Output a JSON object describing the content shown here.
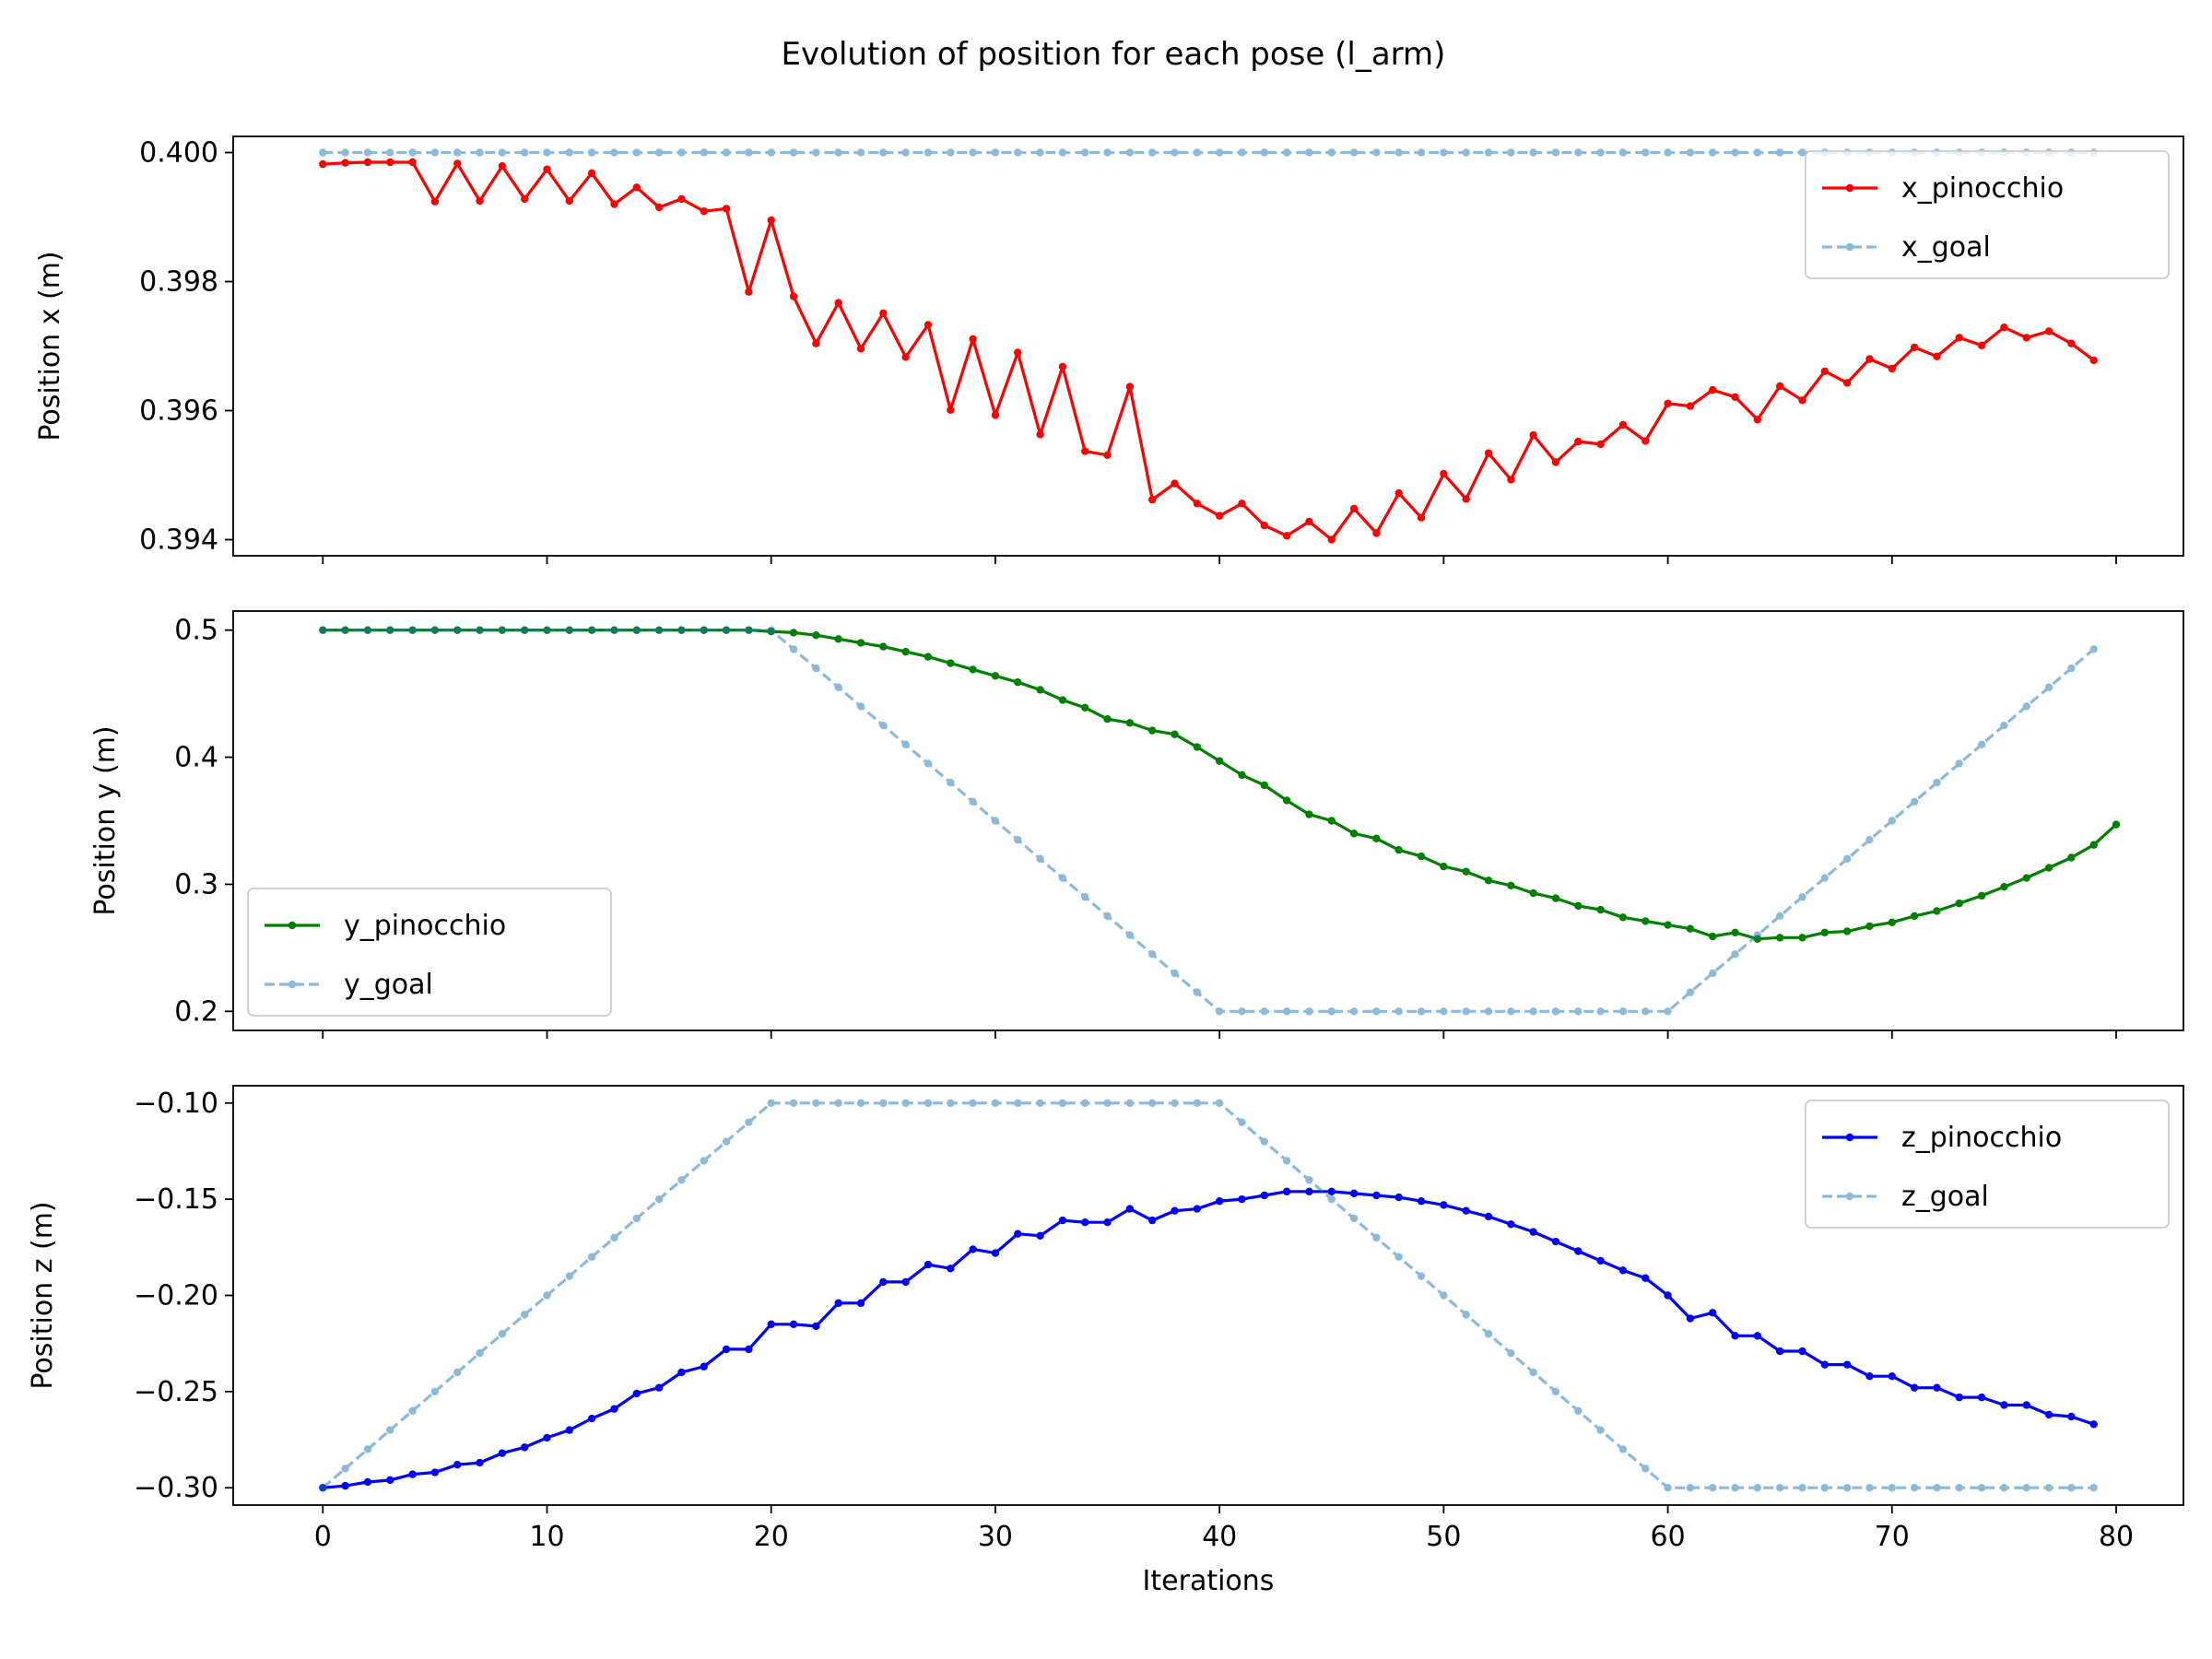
{
  "figure": {
    "title": "Evolution of position for each pose (l_arm)"
  },
  "chart_data": [
    {
      "type": "line",
      "ylabel": "Position x (m)",
      "xlabel": "",
      "xlim": [
        -4,
        83
      ],
      "ylim": [
        0.39375,
        0.40025
      ],
      "xticks": [
        0,
        10,
        20,
        30,
        40,
        50,
        60,
        70,
        80
      ],
      "xtick_labels": [
        "",
        "",
        "",
        "",
        "",
        "",
        "",
        "",
        ""
      ],
      "yticks": [
        0.394,
        0.396,
        0.398,
        0.4
      ],
      "ytick_labels": [
        "0.394",
        "0.396",
        "0.398",
        "0.400"
      ],
      "legend_position": "top-right",
      "series": [
        {
          "name": "x_pinocchio",
          "color": "#ff0000",
          "style": "solid",
          "marker_color": "#ff0000",
          "alpha": 1,
          "values": [
            0.39982,
            0.39984,
            0.39985,
            0.39985,
            0.39985,
            0.39924,
            0.39983,
            0.39925,
            0.39979,
            0.39928,
            0.39974,
            0.39925,
            0.39968,
            0.3992,
            0.39946,
            0.39915,
            0.39928,
            0.39909,
            0.39913,
            0.39784,
            0.39895,
            0.39777,
            0.39704,
            0.39767,
            0.39696,
            0.39751,
            0.39683,
            0.39733,
            0.39601,
            0.39711,
            0.39593,
            0.3969,
            0.39563,
            0.39668,
            0.39537,
            0.39531,
            0.39637,
            0.39462,
            0.39487,
            0.39456,
            0.39437,
            0.39456,
            0.39422,
            0.39406,
            0.39428,
            0.394,
            0.39448,
            0.3941,
            0.39472,
            0.39434,
            0.39502,
            0.39463,
            0.39534,
            0.39493,
            0.39562,
            0.3952,
            0.39552,
            0.39548,
            0.39578,
            0.39553,
            0.39611,
            0.39607,
            0.39632,
            0.39621,
            0.39586,
            0.39638,
            0.39616,
            0.39661,
            0.39643,
            0.3968,
            0.39665,
            0.39698,
            0.39684,
            0.39713,
            0.39701,
            0.39729,
            0.39713,
            0.39723,
            0.39704,
            0.39678
          ]
        },
        {
          "name": "x_goal",
          "color": "#1f77b4",
          "style": "dashed",
          "marker_color": "#1f77b4",
          "alpha": 0.5,
          "values": [
            0.4,
            0.4,
            0.4,
            0.4,
            0.4,
            0.4,
            0.4,
            0.4,
            0.4,
            0.4,
            0.4,
            0.4,
            0.4,
            0.4,
            0.4,
            0.4,
            0.4,
            0.4,
            0.4,
            0.4,
            0.4,
            0.4,
            0.4,
            0.4,
            0.4,
            0.4,
            0.4,
            0.4,
            0.4,
            0.4,
            0.4,
            0.4,
            0.4,
            0.4,
            0.4,
            0.4,
            0.4,
            0.4,
            0.4,
            0.4,
            0.4,
            0.4,
            0.4,
            0.4,
            0.4,
            0.4,
            0.4,
            0.4,
            0.4,
            0.4,
            0.4,
            0.4,
            0.4,
            0.4,
            0.4,
            0.4,
            0.4,
            0.4,
            0.4,
            0.4,
            0.4,
            0.4,
            0.4,
            0.4,
            0.4,
            0.4,
            0.4,
            0.4,
            0.4,
            0.4,
            0.4,
            0.4,
            0.4,
            0.4,
            0.4,
            0.4,
            0.4,
            0.4,
            0.4,
            0.4
          ]
        }
      ]
    },
    {
      "type": "line",
      "ylabel": "Position y (m)",
      "xlabel": "",
      "xlim": [
        -4,
        83
      ],
      "ylim": [
        0.185,
        0.515
      ],
      "xticks": [
        0,
        10,
        20,
        30,
        40,
        50,
        60,
        70,
        80
      ],
      "xtick_labels": [
        "",
        "",
        "",
        "",
        "",
        "",
        "",
        "",
        ""
      ],
      "yticks": [
        0.2,
        0.3,
        0.4,
        0.5
      ],
      "ytick_labels": [
        "0.2",
        "0.3",
        "0.4",
        "0.5"
      ],
      "legend_position": "bottom-left",
      "series": [
        {
          "name": "y_pinocchio",
          "color": "#008000",
          "style": "solid",
          "marker_color": "#008000",
          "alpha": 1,
          "values": [
            0.5,
            0.5,
            0.5,
            0.5,
            0.5,
            0.5,
            0.5,
            0.5,
            0.5,
            0.5,
            0.5,
            0.5,
            0.5,
            0.5,
            0.5,
            0.5,
            0.5,
            0.5,
            0.5,
            0.5,
            0.499,
            0.498,
            0.496,
            0.493,
            0.49,
            0.487,
            0.483,
            0.479,
            0.474,
            0.469,
            0.464,
            0.459,
            0.453,
            0.445,
            0.439,
            0.43,
            0.427,
            0.421,
            0.418,
            0.408,
            0.397,
            0.386,
            0.378,
            0.366,
            0.355,
            0.35,
            0.34,
            0.336,
            0.327,
            0.322,
            0.314,
            0.31,
            0.303,
            0.299,
            0.293,
            0.289,
            0.283,
            0.28,
            0.274,
            0.271,
            0.268,
            0.265,
            0.259,
            0.262,
            0.257,
            0.258,
            0.258,
            0.262,
            0.263,
            0.267,
            0.27,
            0.275,
            0.279,
            0.285,
            0.291,
            0.298,
            0.305,
            0.313,
            0.321,
            0.331,
            0.347
          ]
        },
        {
          "name": "y_goal",
          "color": "#1f77b4",
          "style": "dashed",
          "marker_color": "#1f77b4",
          "alpha": 0.5,
          "values": [
            0.5,
            0.5,
            0.5,
            0.5,
            0.5,
            0.5,
            0.5,
            0.5,
            0.5,
            0.5,
            0.5,
            0.5,
            0.5,
            0.5,
            0.5,
            0.5,
            0.5,
            0.5,
            0.5,
            0.5,
            0.5,
            0.485,
            0.47,
            0.455,
            0.44,
            0.425,
            0.41,
            0.395,
            0.38,
            0.365,
            0.35,
            0.335,
            0.32,
            0.305,
            0.29,
            0.275,
            0.26,
            0.245,
            0.23,
            0.215,
            0.2,
            0.2,
            0.2,
            0.2,
            0.2,
            0.2,
            0.2,
            0.2,
            0.2,
            0.2,
            0.2,
            0.2,
            0.2,
            0.2,
            0.2,
            0.2,
            0.2,
            0.2,
            0.2,
            0.2,
            0.2,
            0.215,
            0.23,
            0.245,
            0.26,
            0.275,
            0.29,
            0.305,
            0.32,
            0.335,
            0.35,
            0.365,
            0.38,
            0.395,
            0.41,
            0.425,
            0.44,
            0.455,
            0.47,
            0.485
          ]
        }
      ]
    },
    {
      "type": "line",
      "ylabel": "Position z (m)",
      "xlabel": "Iterations",
      "xlim": [
        -4,
        83
      ],
      "ylim": [
        -0.309,
        -0.091
      ],
      "xticks": [
        0,
        10,
        20,
        30,
        40,
        50,
        60,
        70,
        80
      ],
      "xtick_labels": [
        "0",
        "10",
        "20",
        "30",
        "40",
        "50",
        "60",
        "70",
        "80"
      ],
      "yticks": [
        -0.3,
        -0.25,
        -0.2,
        -0.15,
        -0.1
      ],
      "ytick_labels": [
        "−0.30",
        "−0.25",
        "−0.20",
        "−0.15",
        "−0.10"
      ],
      "legend_position": "top-right",
      "series": [
        {
          "name": "z_pinocchio",
          "color": "#0000ff",
          "style": "solid",
          "marker_color": "#0000ff",
          "alpha": 1,
          "values": [
            -0.3,
            -0.299,
            -0.297,
            -0.296,
            -0.293,
            -0.292,
            -0.288,
            -0.287,
            -0.282,
            -0.279,
            -0.274,
            -0.27,
            -0.264,
            -0.259,
            -0.251,
            -0.248,
            -0.24,
            -0.237,
            -0.228,
            -0.228,
            -0.215,
            -0.215,
            -0.216,
            -0.204,
            -0.204,
            -0.193,
            -0.193,
            -0.184,
            -0.186,
            -0.176,
            -0.178,
            -0.168,
            -0.169,
            -0.161,
            -0.162,
            -0.162,
            -0.155,
            -0.161,
            -0.156,
            -0.155,
            -0.151,
            -0.15,
            -0.148,
            -0.146,
            -0.146,
            -0.146,
            -0.147,
            -0.148,
            -0.149,
            -0.151,
            -0.153,
            -0.156,
            -0.159,
            -0.163,
            -0.167,
            -0.172,
            -0.177,
            -0.182,
            -0.187,
            -0.191,
            -0.2,
            -0.212,
            -0.209,
            -0.221,
            -0.221,
            -0.229,
            -0.229,
            -0.236,
            -0.236,
            -0.242,
            -0.242,
            -0.248,
            -0.248,
            -0.253,
            -0.253,
            -0.257,
            -0.257,
            -0.262,
            -0.263,
            -0.267
          ]
        },
        {
          "name": "z_goal",
          "color": "#1f77b4",
          "style": "dashed",
          "marker_color": "#1f77b4",
          "alpha": 0.5,
          "values": [
            -0.3,
            -0.29,
            -0.28,
            -0.27,
            -0.26,
            -0.25,
            -0.24,
            -0.23,
            -0.22,
            -0.21,
            -0.2,
            -0.19,
            -0.18,
            -0.17,
            -0.16,
            -0.15,
            -0.14,
            -0.13,
            -0.12,
            -0.11,
            -0.1,
            -0.1,
            -0.1,
            -0.1,
            -0.1,
            -0.1,
            -0.1,
            -0.1,
            -0.1,
            -0.1,
            -0.1,
            -0.1,
            -0.1,
            -0.1,
            -0.1,
            -0.1,
            -0.1,
            -0.1,
            -0.1,
            -0.1,
            -0.1,
            -0.11,
            -0.12,
            -0.13,
            -0.14,
            -0.15,
            -0.16,
            -0.17,
            -0.18,
            -0.19,
            -0.2,
            -0.21,
            -0.22,
            -0.23,
            -0.24,
            -0.25,
            -0.26,
            -0.27,
            -0.28,
            -0.29,
            -0.3,
            -0.3,
            -0.3,
            -0.3,
            -0.3,
            -0.3,
            -0.3,
            -0.3,
            -0.3,
            -0.3,
            -0.3,
            -0.3,
            -0.3,
            -0.3,
            -0.3,
            -0.3,
            -0.3,
            -0.3,
            -0.3,
            -0.3
          ]
        }
      ]
    }
  ]
}
